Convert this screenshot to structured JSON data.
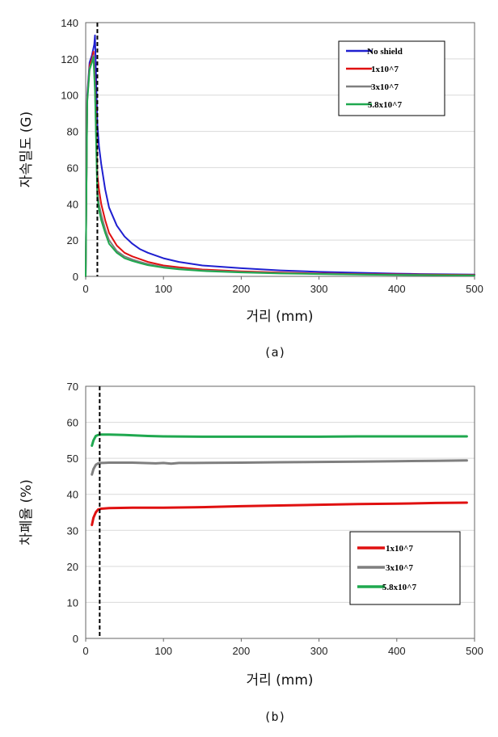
{
  "chart_data": [
    {
      "type": "line",
      "caption": "(a)",
      "xlabel": "거리 (mm)",
      "ylabel": "자속밀도 (G)",
      "xlim": [
        0,
        500
      ],
      "ylim": [
        0,
        140
      ],
      "xticks": [
        0,
        100,
        200,
        300,
        400,
        500
      ],
      "yticks": [
        0,
        20,
        40,
        60,
        80,
        100,
        120,
        140
      ],
      "grid": "horizontal",
      "legend_position": "top-right",
      "vline_x": 15,
      "series": [
        {
          "name": "No shield",
          "color": "#1f1fd0",
          "x": [
            0,
            2,
            5,
            8,
            11,
            12,
            13,
            15,
            17,
            20,
            25,
            30,
            40,
            50,
            60,
            70,
            80,
            100,
            120,
            150,
            200,
            250,
            300,
            350,
            400,
            430,
            500
          ],
          "y": [
            0,
            100,
            118,
            122,
            128,
            133,
            116,
            84,
            72,
            62,
            48,
            38,
            28,
            22,
            18,
            15,
            13,
            10,
            8,
            6,
            4.5,
            3.3,
            2.5,
            2,
            1.5,
            1.3,
            1
          ]
        },
        {
          "name": "1x10^7",
          "color": "#e01010",
          "x": [
            0,
            2,
            5,
            8,
            10,
            12,
            14,
            15,
            17,
            20,
            25,
            30,
            40,
            50,
            60,
            70,
            80,
            100,
            120,
            150,
            200,
            250,
            300,
            350,
            400,
            430,
            500
          ],
          "y": [
            0,
            98,
            116,
            120,
            124,
            108,
            75,
            56,
            48,
            40,
            31,
            24,
            17,
            13,
            11,
            9.5,
            8,
            6,
            5,
            3.8,
            2.8,
            2.1,
            1.6,
            1.3,
            1.1,
            1,
            0.8
          ]
        },
        {
          "name": "3x10^7",
          "color": "#7f7f7f",
          "x": [
            0,
            2,
            5,
            8,
            10,
            12,
            14,
            15,
            17,
            20,
            25,
            30,
            40,
            50,
            60,
            70,
            80,
            100,
            120,
            150,
            200,
            250,
            300,
            350,
            400,
            430,
            500
          ],
          "y": [
            0,
            97,
            115,
            118,
            122,
            104,
            66,
            47,
            40,
            34,
            26,
            20,
            14,
            11,
            9.3,
            8,
            6.8,
            5.2,
            4.2,
            3.3,
            2.4,
            1.8,
            1.4,
            1.1,
            0.9,
            0.8,
            0.6
          ]
        },
        {
          "name": "5.8x10^7",
          "color": "#1fa84f",
          "x": [
            0,
            2,
            5,
            8,
            10,
            12,
            14,
            15,
            17,
            20,
            25,
            30,
            40,
            50,
            60,
            70,
            80,
            100,
            120,
            150,
            200,
            250,
            300,
            350,
            400,
            430,
            500
          ],
          "y": [
            0,
            96,
            114,
            118,
            121,
            102,
            62,
            44,
            37,
            31,
            24,
            18,
            13,
            10,
            8.5,
            7.3,
            6.2,
            4.8,
            3.9,
            3,
            2.2,
            1.6,
            1.3,
            1,
            0.8,
            0.7,
            0.5
          ]
        }
      ]
    },
    {
      "type": "line",
      "caption": "(b)",
      "xlabel": "거리 (mm)",
      "ylabel": "차폐율 (%)",
      "xlim": [
        0,
        500
      ],
      "ylim": [
        0,
        70
      ],
      "xticks": [
        0,
        100,
        200,
        300,
        400,
        500
      ],
      "yticks": [
        0,
        10,
        20,
        30,
        40,
        50,
        60,
        70
      ],
      "grid": "horizontal",
      "legend_position": "bottom-right",
      "vline_x": 18,
      "series": [
        {
          "name": "1x10^7",
          "color": "#e01010",
          "x": [
            8,
            10,
            13,
            16,
            20,
            30,
            60,
            100,
            140,
            200,
            250,
            300,
            350,
            400,
            450,
            490
          ],
          "y": [
            31.5,
            33.5,
            35,
            35.8,
            36,
            36.2,
            36.3,
            36.3,
            36.4,
            36.7,
            36.9,
            37.1,
            37.3,
            37.4,
            37.6,
            37.7
          ]
        },
        {
          "name": "3x10^7",
          "color": "#7f7f7f",
          "x": [
            8,
            10,
            13,
            16,
            20,
            30,
            60,
            90,
            100,
            110,
            120,
            140,
            200,
            250,
            300,
            350,
            400,
            450,
            490
          ],
          "y": [
            45.5,
            47,
            48.2,
            48.6,
            48.7,
            48.8,
            48.8,
            48.6,
            48.7,
            48.5,
            48.7,
            48.7,
            48.8,
            48.9,
            49,
            49.1,
            49.2,
            49.3,
            49.4
          ]
        },
        {
          "name": "5.8x10^7",
          "color": "#1fa84f",
          "x": [
            8,
            10,
            13,
            16,
            20,
            30,
            50,
            80,
            100,
            150,
            200,
            250,
            300,
            350,
            400,
            450,
            490
          ],
          "y": [
            53.5,
            55,
            56.2,
            56.5,
            56.6,
            56.6,
            56.5,
            56.2,
            56.1,
            56,
            56,
            56,
            56,
            56.1,
            56.1,
            56.1,
            56.1
          ]
        }
      ]
    }
  ]
}
